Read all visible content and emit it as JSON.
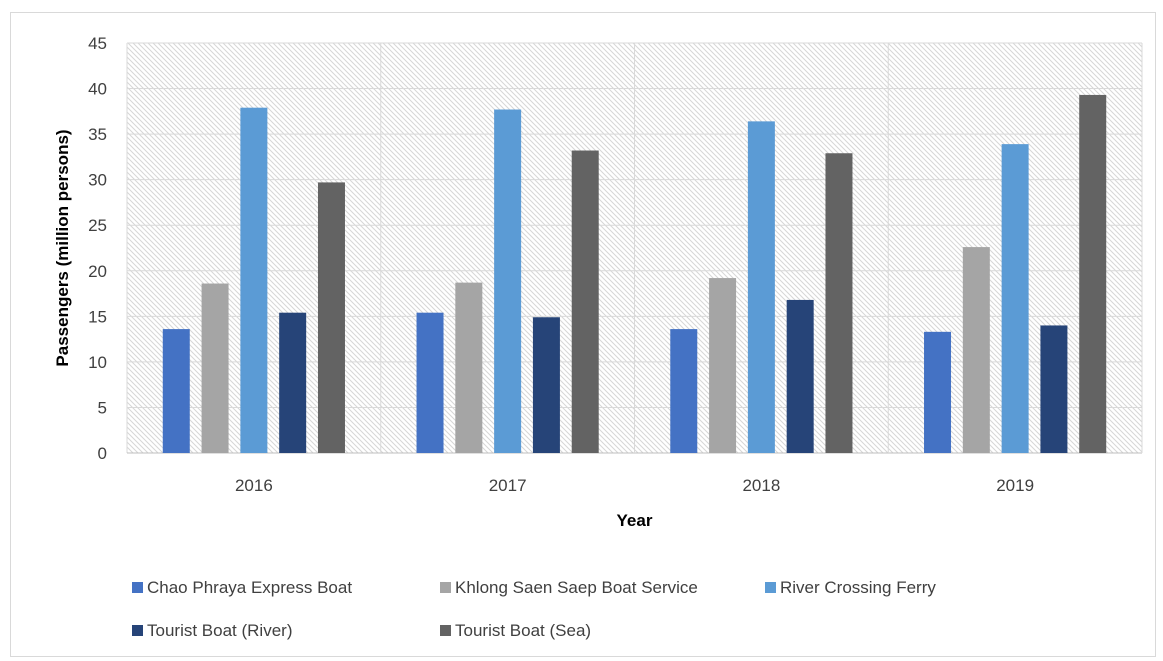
{
  "chart_data": {
    "type": "bar",
    "title": "",
    "xlabel": "Year",
    "ylabel": "Passengers (million persons)",
    "ylim": [
      0,
      45
    ],
    "yticks": [
      0,
      5,
      10,
      15,
      20,
      25,
      30,
      35,
      40,
      45
    ],
    "categories": [
      "2016",
      "2017",
      "2018",
      "2019"
    ],
    "series": [
      {
        "name": "Chao Phraya Express Boat",
        "color": "#4472C4",
        "values": [
          13.6,
          15.4,
          13.6,
          13.3
        ]
      },
      {
        "name": "Khlong Saen Saep Boat Service",
        "color": "#A5A5A5",
        "values": [
          18.6,
          18.7,
          19.2,
          22.6
        ]
      },
      {
        "name": "River Crossing Ferry",
        "color": "#5B9BD5",
        "values": [
          37.9,
          37.7,
          36.4,
          33.9
        ]
      },
      {
        "name": "Tourist Boat (River)",
        "color": "#264478",
        "values": [
          15.4,
          14.9,
          16.8,
          14.0
        ]
      },
      {
        "name": "Tourist Boat (Sea)",
        "color": "#636363",
        "values": [
          29.7,
          33.2,
          32.9,
          39.3
        ]
      }
    ],
    "grid": true,
    "legend_position": "bottom"
  }
}
